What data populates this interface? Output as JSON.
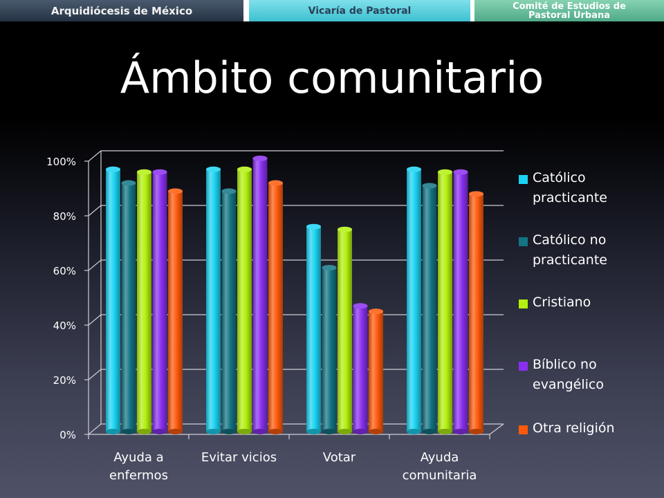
{
  "header": {
    "tab1": "Arquidiócesis de México",
    "tab2": "Vicaría de Pastoral",
    "tab3_line1": "Comité de Estudios de",
    "tab3_line2": "Pastoral Urbana"
  },
  "page": {
    "title": "Ámbito comunitario"
  },
  "chart_data": {
    "type": "bar",
    "title": "",
    "xlabel": "",
    "ylabel": "",
    "ylim": [
      0,
      100
    ],
    "yticks": [
      "0%",
      "20%",
      "40%",
      "60%",
      "80%",
      "100%"
    ],
    "categories": [
      "Ayuda a enfermos",
      "Evitar vicios",
      "Votar",
      "Ayuda comunitaria"
    ],
    "legend_position": "right",
    "series": [
      {
        "name": "Católico practicante",
        "color": "#1ad3f2",
        "values": [
          96,
          96,
          75,
          96
        ]
      },
      {
        "name": "Católico no practicante",
        "color": "#137484",
        "values": [
          91,
          88,
          60,
          90
        ]
      },
      {
        "name": "Cristiano",
        "color": "#b3f00e",
        "values": [
          95,
          96,
          74,
          95
        ]
      },
      {
        "name": "Bíblico no evangélico",
        "color": "#8a2ff0",
        "values": [
          95,
          100,
          46,
          95
        ]
      },
      {
        "name": "Otra religión",
        "color": "#ff5a0c",
        "values": [
          88,
          91,
          44,
          87
        ]
      }
    ]
  }
}
